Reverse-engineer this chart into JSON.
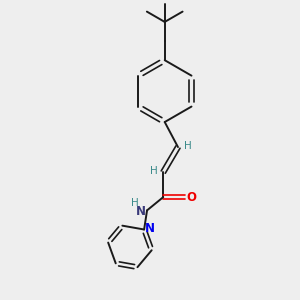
{
  "background_color": "#eeeeee",
  "bond_color": "#1a1a1a",
  "nitrogen_color": "#0000ee",
  "oxygen_color": "#ee0000",
  "h_color": "#3a8a8a",
  "nh_color": "#3a3a7a",
  "figsize": [
    3.0,
    3.0
  ],
  "dpi": 100,
  "xlim": [
    0,
    10
  ],
  "ylim": [
    0,
    10
  ]
}
